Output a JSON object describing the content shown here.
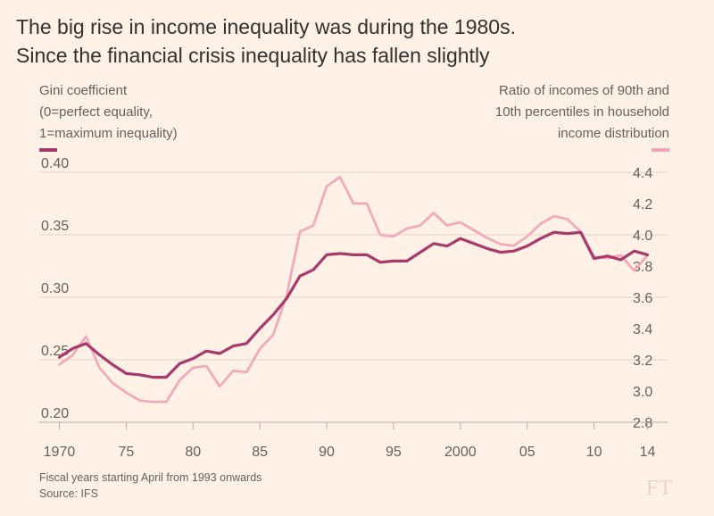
{
  "title": {
    "line1": "The big rise in income inequality was during the 1980s.",
    "line2": "Since the financial crisis inequality has fallen slightly"
  },
  "legend_left": {
    "line1": "Gini coefficient",
    "line2": "(0=perfect equality,",
    "line3": "1=maximum inequality)",
    "color": "#a8396b"
  },
  "legend_right": {
    "line1": "Ratio of incomes of 90th and",
    "line2": "10th percentiles in household",
    "line3": "income distribution",
    "color": "#f3a6b8"
  },
  "footnote": {
    "line1": "Fiscal years starting April from 1993 onwards",
    "line2": "Source: IFS"
  },
  "logo": "FT",
  "chart_data": {
    "type": "line",
    "x": [
      1970,
      1971,
      1972,
      1973,
      1974,
      1975,
      1976,
      1977,
      1978,
      1979,
      1980,
      1981,
      1982,
      1983,
      1984,
      1985,
      1986,
      1987,
      1988,
      1989,
      1990,
      1991,
      1992,
      1993,
      1994,
      1995,
      1996,
      1997,
      1998,
      1999,
      2000,
      2001,
      2002,
      2003,
      2004,
      2005,
      2006,
      2007,
      2008,
      2009,
      2010,
      2011,
      2012,
      2013,
      2014
    ],
    "xlim": [
      1968.5,
      2015.5
    ],
    "x_ticks": [
      1970,
      1975,
      1980,
      1985,
      1990,
      1995,
      2000,
      2005,
      2010,
      2014
    ],
    "x_tick_labels": [
      "1970",
      "75",
      "80",
      "85",
      "90",
      "95",
      "2000",
      "05",
      "10",
      "14"
    ],
    "left_axis": {
      "ylim": [
        0.2,
        0.4
      ],
      "ticks": [
        "0.20",
        "0.25",
        "0.30",
        "0.35",
        "0.40"
      ],
      "grid": true
    },
    "right_axis": {
      "ylim": [
        2.8,
        4.4
      ],
      "ticks": [
        "2.8",
        "3.0",
        "3.2",
        "3.4",
        "3.6",
        "3.8",
        "4.0",
        "4.2",
        "4.4"
      ]
    },
    "series": [
      {
        "axis": "left",
        "color": "#a8396b",
        "values": [
          0.252,
          0.259,
          0.263,
          0.254,
          0.246,
          0.239,
          0.238,
          0.236,
          0.236,
          0.247,
          0.251,
          0.257,
          0.255,
          0.261,
          0.263,
          0.275,
          0.286,
          0.299,
          0.317,
          0.322,
          0.334,
          0.335,
          0.334,
          0.334,
          0.328,
          0.329,
          0.329,
          0.336,
          0.343,
          0.341,
          0.347,
          0.343,
          0.339,
          0.336,
          0.337,
          0.341,
          0.347,
          0.352,
          0.351,
          0.352,
          0.331,
          0.333,
          0.33,
          0.337,
          0.334
        ]
      },
      {
        "axis": "right",
        "color": "#f3a6b8",
        "values": [
          3.17,
          3.23,
          3.35,
          3.15,
          3.05,
          2.99,
          2.94,
          2.93,
          2.93,
          3.07,
          3.15,
          3.16,
          3.03,
          3.13,
          3.12,
          3.27,
          3.36,
          3.61,
          4.02,
          4.06,
          4.31,
          4.37,
          4.2,
          4.2,
          4.0,
          3.99,
          4.04,
          4.06,
          4.14,
          4.06,
          4.08,
          4.03,
          3.98,
          3.94,
          3.93,
          3.99,
          4.07,
          4.12,
          4.1,
          4.02,
          3.86,
          3.85,
          3.87,
          3.77,
          3.87
        ]
      }
    ]
  }
}
